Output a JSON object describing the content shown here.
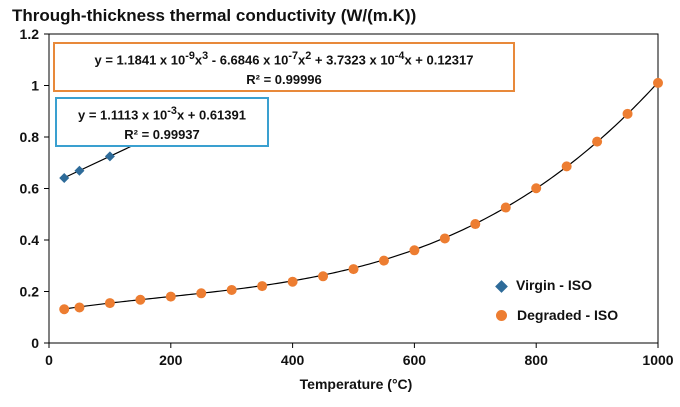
{
  "chart_data": {
    "type": "scatter",
    "title": "Through-thickness thermal conductivity (W/(m.K))",
    "xlabel": "Temperature (°C)",
    "ylabel": "",
    "xlim": [
      0,
      1000
    ],
    "ylim": [
      0,
      1.2
    ],
    "xticks": [
      "0",
      "200",
      "400",
      "600",
      "800",
      "1000"
    ],
    "yticks": [
      "0",
      "0.2",
      "0.4",
      "0.6",
      "0.8",
      "1",
      "1.2"
    ],
    "legend_position": "bottom-right",
    "series": [
      {
        "name": "Virgin - ISO",
        "marker": "diamond",
        "color": "#2e6b99",
        "x": [
          25,
          50,
          100,
          150
        ],
        "y": [
          0.641,
          0.669,
          0.725,
          0.78
        ],
        "trendline": {
          "type": "linear",
          "equation": "y = 1.1113 x 10-3x + 0.61391",
          "r2": "R² = 0.99937",
          "coefficients": [
            0.0011113,
            0.61391
          ],
          "box_color": "#3aa0d0"
        }
      },
      {
        "name": "Degraded - ISO",
        "marker": "circle",
        "color": "#ed7d31",
        "x": [
          25,
          50,
          100,
          150,
          200,
          250,
          300,
          350,
          400,
          450,
          500,
          550,
          600,
          650,
          700,
          750,
          800,
          850,
          900,
          950,
          1000
        ],
        "y": [
          0.131,
          0.138,
          0.155,
          0.168,
          0.18,
          0.193,
          0.206,
          0.221,
          0.238,
          0.259,
          0.287,
          0.32,
          0.36,
          0.406,
          0.462,
          0.526,
          0.601,
          0.686,
          0.782,
          0.89,
          1.01
        ],
        "trendline": {
          "type": "polynomial",
          "equation": "y = 1.1841 x 10-9x3 - 6.6846 x 10-7x2 + 3.7323 x 10-4x + 0.12317",
          "r2": "R² = 0.99996",
          "coefficients": [
            1.1841e-09,
            -6.6846e-07,
            0.00037323,
            0.12317
          ],
          "box_color": "#e8893a"
        }
      }
    ]
  }
}
